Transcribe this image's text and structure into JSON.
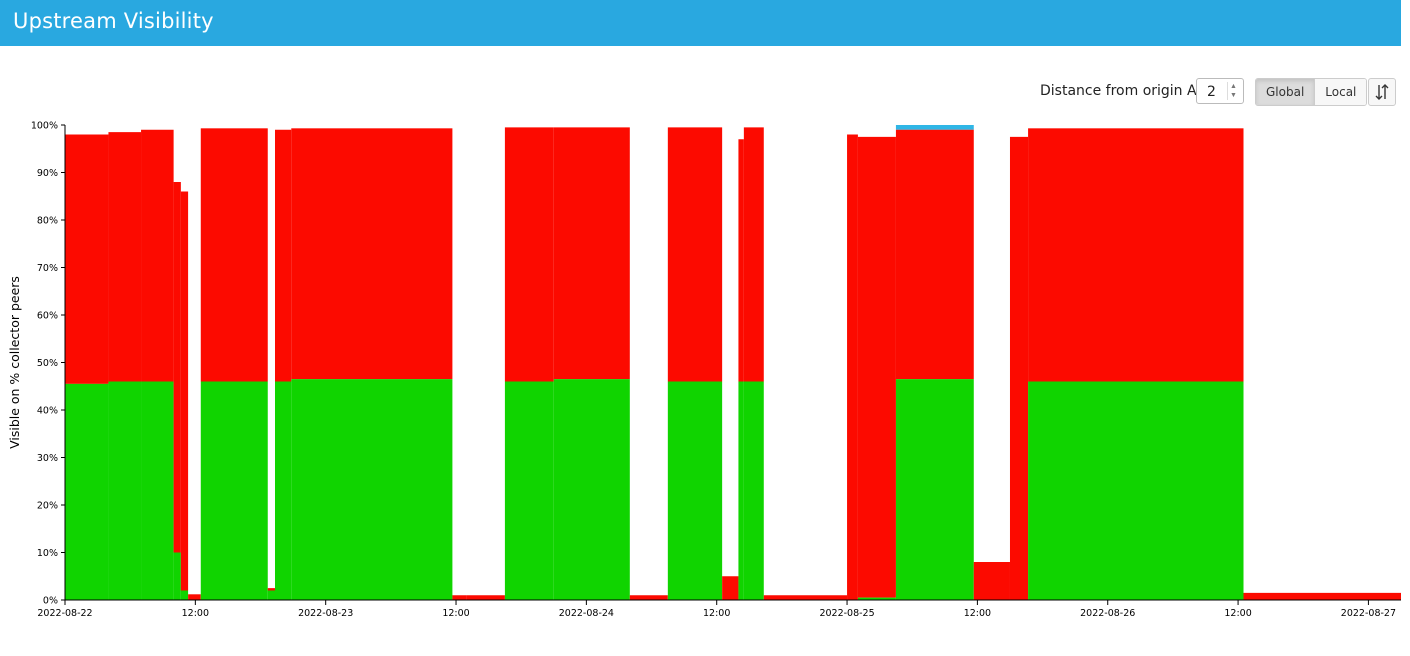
{
  "header": {
    "title": "Upstream Visibility"
  },
  "controls": {
    "distance_label": "Distance from origin AS",
    "distance_value": "2",
    "mode_buttons": [
      {
        "label": "Global",
        "active": true
      },
      {
        "label": "Local",
        "active": false
      }
    ],
    "sort_icon": "sort-arrows-icon"
  },
  "chart_data": {
    "type": "area",
    "ylabel": "Visible on % collector peers",
    "ylim": [
      0,
      100
    ],
    "y_ticks": [
      "0%",
      "10%",
      "20%",
      "30%",
      "40%",
      "50%",
      "60%",
      "70%",
      "80%",
      "90%",
      "100%"
    ],
    "xlim": [
      "2022-08-22 00:00",
      "2022-08-27 03:00"
    ],
    "x_ticks": [
      {
        "t": "2022-08-22 00:00",
        "label": "2022-08-22"
      },
      {
        "t": "2022-08-22 12:00",
        "label": "12:00"
      },
      {
        "t": "2022-08-23 00:00",
        "label": "2022-08-23"
      },
      {
        "t": "2022-08-23 12:00",
        "label": "12:00"
      },
      {
        "t": "2022-08-24 00:00",
        "label": "2022-08-24"
      },
      {
        "t": "2022-08-24 12:00",
        "label": "12:00"
      },
      {
        "t": "2022-08-25 00:00",
        "label": "2022-08-25"
      },
      {
        "t": "2022-08-25 12:00",
        "label": "12:00"
      },
      {
        "t": "2022-08-26 00:00",
        "label": "2022-08-26"
      },
      {
        "t": "2022-08-26 12:00",
        "label": "12:00"
      },
      {
        "t": "2022-08-27 00:00",
        "label": "2022-08-27"
      }
    ],
    "colors": {
      "green": "#10d400",
      "red": "#fc0a00",
      "blue": "#2fb6e6"
    },
    "segments": [
      {
        "start": "2022-08-22 00:00",
        "end": "2022-08-22 04:00",
        "green": 45.5,
        "red_top": 98
      },
      {
        "start": "2022-08-22 04:00",
        "end": "2022-08-22 07:00",
        "green": 46,
        "red_top": 98.5
      },
      {
        "start": "2022-08-22 07:00",
        "end": "2022-08-22 10:00",
        "green": 46,
        "red_top": 99
      },
      {
        "start": "2022-08-22 10:00",
        "end": "2022-08-22 10:40",
        "green": 10,
        "red_top": 88
      },
      {
        "start": "2022-08-22 10:40",
        "end": "2022-08-22 11:20",
        "green": 2,
        "red_top": 86
      },
      {
        "start": "2022-08-22 11:20",
        "end": "2022-08-22 12:30",
        "green": 0,
        "red_top": 1.2
      },
      {
        "start": "2022-08-22 12:30",
        "end": "2022-08-22 18:40",
        "green": 46,
        "red_top": 99.3
      },
      {
        "start": "2022-08-22 18:40",
        "end": "2022-08-22 19:20",
        "green": 2,
        "red_top": 2.5
      },
      {
        "start": "2022-08-22 19:20",
        "end": "2022-08-22 20:50",
        "green": 46,
        "red_top": 99
      },
      {
        "start": "2022-08-22 20:50",
        "end": "2022-08-23 11:40",
        "green": 46.5,
        "red_top": 99.3
      },
      {
        "start": "2022-08-23 11:40",
        "end": "2022-08-23 13:00",
        "green": 0,
        "red_top": 1
      },
      {
        "start": "2022-08-23 13:00",
        "end": "2022-08-23 16:30",
        "green": 0,
        "red_top": 1
      },
      {
        "start": "2022-08-23 16:30",
        "end": "2022-08-23 21:00",
        "green": 46,
        "red_top": 99.5
      },
      {
        "start": "2022-08-23 21:00",
        "end": "2022-08-24 04:00",
        "green": 46.5,
        "red_top": 99.5
      },
      {
        "start": "2022-08-24 04:00",
        "end": "2022-08-24 07:30",
        "green": 0,
        "red_top": 1
      },
      {
        "start": "2022-08-24 07:30",
        "end": "2022-08-24 12:30",
        "green": 46,
        "red_top": 99.5
      },
      {
        "start": "2022-08-24 12:30",
        "end": "2022-08-24 14:00",
        "green": 0,
        "red_top": 5
      },
      {
        "start": "2022-08-24 14:00",
        "end": "2022-08-24 14:30",
        "green": 46,
        "red_top": 97
      },
      {
        "start": "2022-08-24 14:30",
        "end": "2022-08-24 16:20",
        "green": 46,
        "red_top": 99.5
      },
      {
        "start": "2022-08-24 16:20",
        "end": "2022-08-25 00:00",
        "green": 0,
        "red_top": 1
      },
      {
        "start": "2022-08-25 00:00",
        "end": "2022-08-25 01:00",
        "green": 0,
        "red_top": 98
      },
      {
        "start": "2022-08-25 01:00",
        "end": "2022-08-25 04:30",
        "green": 0.5,
        "red_top": 97.5
      },
      {
        "start": "2022-08-25 04:30",
        "end": "2022-08-25 11:40",
        "green": 46.5,
        "red_top": 99,
        "blue_top": 100
      },
      {
        "start": "2022-08-25 11:40",
        "end": "2022-08-25 15:00",
        "green": 0,
        "red_top": 8
      },
      {
        "start": "2022-08-25 15:00",
        "end": "2022-08-25 16:40",
        "green": 0,
        "red_top": 97.5
      },
      {
        "start": "2022-08-25 16:40",
        "end": "2022-08-26 12:30",
        "green": 46,
        "red_top": 99.3
      },
      {
        "start": "2022-08-26 12:30",
        "end": "2022-08-27 03:00",
        "green": 0,
        "red_top": 1.5
      }
    ]
  }
}
